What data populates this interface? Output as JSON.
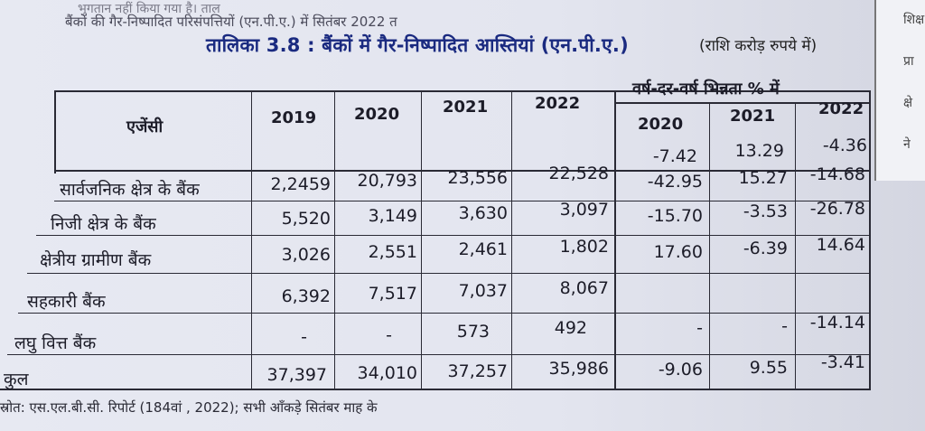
{
  "intro": {
    "line1": "भुगतान नहीं किया गया है। ताल",
    "line2": "बैंकों की गैर-निष्पादित परिसंपत्तियों (एन.पी.ए.) में सितंबर 2022 त"
  },
  "table": {
    "title": "तालिका 3.8 : बैंकों में गैर-निष्पादित आस्तियां (एन.पी.ए.)",
    "unit": "(राशि करोड़ रुपये में)",
    "headers": {
      "agency": "एजेंसी",
      "y2019": "2019",
      "y2020": "2020",
      "y2021": "2021",
      "y2022": "2022",
      "yoy": "वर्ष-दर-वर्ष भिन्नता % में",
      "yoy2020": "2020",
      "yoy2021": "2021",
      "yoy2022": "2022"
    },
    "first_yoy_row": [
      "-7.42",
      "13.29",
      "-4.36"
    ],
    "rows": [
      {
        "name": "सार्वजनिक क्षेत्र के बैंक",
        "v2019": "2,2459",
        "v2020": "20,793",
        "v2021": "23,556",
        "v2022": "22,528",
        "c2020": "-42.95",
        "c2021": "15.27",
        "c2022": "-14.68"
      },
      {
        "name": "निजी क्षेत्र के बैंक",
        "v2019": "5,520",
        "v2020": "3,149",
        "v2021": "3,630",
        "v2022": "3,097",
        "c2020": "-15.70",
        "c2021": "-3.53",
        "c2022": "-26.78"
      },
      {
        "name": "क्षेत्रीय ग्रामीण बैंक",
        "v2019": "3,026",
        "v2020": "2,551",
        "v2021": "2,461",
        "v2022": "1,802",
        "c2020": "17.60",
        "c2021": "-6.39",
        "c2022": "14.64"
      },
      {
        "name": "सहकारी बैंक",
        "v2019": "6,392",
        "v2020": "7,517",
        "v2021": "7,037",
        "v2022": "8,067",
        "c2020": "-",
        "c2021": "-",
        "c2022": "-14.14"
      },
      {
        "name": "लघु वित्त बैंक",
        "v2019": "-",
        "v2020": "-",
        "v2021": "573",
        "v2022": "492",
        "c2020": "-9.06",
        "c2021": "9.55",
        "c2022": "-3.41"
      },
      {
        "name": "कुल",
        "v2019": "37,397",
        "v2020": "34,010",
        "v2021": "37,257",
        "v2022": "35,986",
        "c2020": "",
        "c2021": "",
        "c2022": ""
      }
    ]
  },
  "source": "स्रोत: एस.एल.बी.सी. रिपोर्ट (184वां , 2022); सभी आँकड़े सितंबर माह के",
  "side": [
    "शिक्ष",
    "प्रा",
    "क्षे",
    "ने"
  ]
}
